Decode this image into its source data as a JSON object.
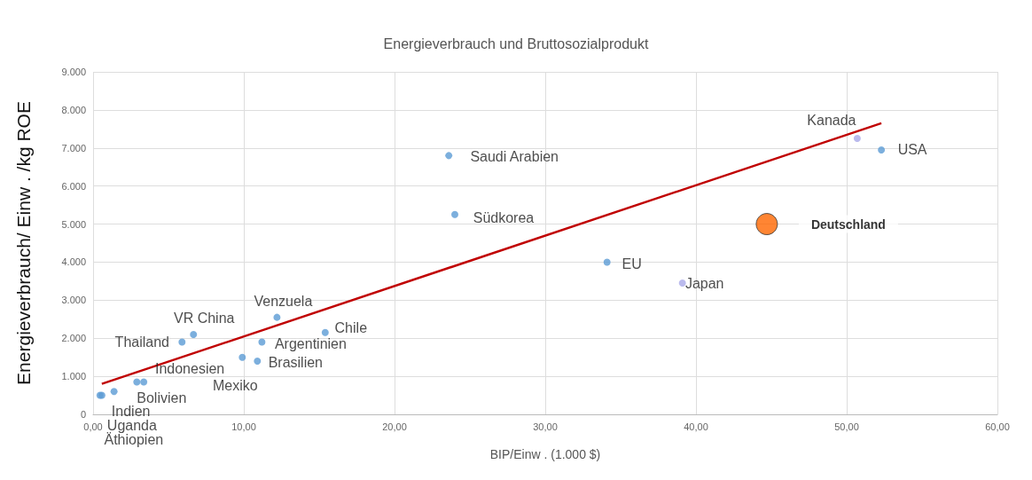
{
  "chart_data": {
    "type": "scatter",
    "title": "Energieverbrauch und Bruttosozialprodukt",
    "xlabel": "BIP/Einw . (1.000 $)",
    "ylabel": "Energieverbrauch/ Einw . /kg ROE",
    "xlim": [
      0,
      60
    ],
    "xticks": [
      {
        "value": 0,
        "label": "0,00"
      },
      {
        "value": 10,
        "label": "10,00"
      },
      {
        "value": 20,
        "label": "20,00"
      },
      {
        "value": 30,
        "label": "30,00"
      },
      {
        "value": 40,
        "label": "40,00"
      },
      {
        "value": 50,
        "label": "50,00"
      },
      {
        "value": 60,
        "label": "60,00"
      }
    ],
    "ylim": [
      0,
      9000
    ],
    "yticks": [
      0,
      {
        "value": 1000,
        "label": "1.000"
      },
      {
        "value": 2000,
        "label": "2.000"
      },
      {
        "value": 3000,
        "label": "3.000"
      },
      {
        "value": 4000,
        "label": "4.000"
      },
      {
        "value": 5000,
        "label": "5.000"
      },
      {
        "value": 6000,
        "label": "6.000"
      },
      {
        "value": 7000,
        "label": "7.000"
      },
      {
        "value": 8000,
        "label": "8.000"
      },
      {
        "value": 9000,
        "label": "9.000"
      }
    ],
    "grid": true,
    "legend": false,
    "marker": "circle",
    "series": [
      {
        "x": [
          0.46,
          0.58,
          1.39,
          2.9,
          3.36,
          5.9,
          6.66,
          9.9,
          10.9,
          11.2,
          12.2,
          15.4,
          23.6,
          24.0,
          34.1,
          39.1,
          50.7,
          52.3
        ],
        "values": [
          500,
          500,
          600,
          850,
          850,
          1900,
          2100,
          1500,
          1400,
          1900,
          2550,
          2150,
          6800,
          5250,
          4000,
          3450,
          7250,
          6950
        ],
        "colors": [
          "#5b9bd5",
          "#5b9bd5",
          "#5b9bd5",
          "#5b9bd5",
          "#5b9bd5",
          "#5b9bd5",
          "#5b9bd5",
          "#5b9bd5",
          "#5b9bd5",
          "#5b9bd5",
          "#5b9bd5",
          "#5b9bd5",
          "#5b9bd5",
          "#5b9bd5",
          "#5b9bd5",
          "#a9a9e8",
          "#a9a9e8",
          "#5b9bd5"
        ]
      },
      {
        "name": "Deutschland",
        "color": "#ff6600",
        "x": [
          44.7
        ],
        "values": [
          5000
        ]
      },
      {
        "type": "line",
        "color": "#c00000",
        "x": [
          0.58,
          52.3
        ],
        "values": [
          800,
          7650
        ],
        "marker": "none"
      }
    ],
    "annotations": [
      {
        "text": "Äthiopien",
        "x": 0.46,
        "y": 500
      },
      {
        "text": "Uganda",
        "x": 0.58,
        "y": 500
      },
      {
        "text": "Indien",
        "x": 1.39,
        "y": 600
      },
      {
        "text": "Bolivien",
        "x": 2.9,
        "y": 850
      },
      {
        "text": "Indonesien",
        "x": 3.36,
        "y": 850
      },
      {
        "text": "Thailand",
        "x": 5.9,
        "y": 1900
      },
      {
        "text": "VR China",
        "x": 6.66,
        "y": 2100
      },
      {
        "text": "Mexiko",
        "x": 9.9,
        "y": 1500
      },
      {
        "text": "Brasilien",
        "x": 10.9,
        "y": 1400
      },
      {
        "text": "Argentinien",
        "x": 11.2,
        "y": 1900
      },
      {
        "text": "Venzuela",
        "x": 12.2,
        "y": 2550
      },
      {
        "text": "Chile",
        "x": 15.4,
        "y": 2150
      },
      {
        "text": "Saudi Arabien",
        "x": 23.6,
        "y": 6800
      },
      {
        "text": "Südkorea",
        "x": 24.0,
        "y": 5250
      },
      {
        "text": "EU",
        "x": 34.1,
        "y": 4000
      },
      {
        "text": "Japan",
        "x": 39.1,
        "y": 3450
      },
      {
        "text": "Kanada",
        "x": 50.7,
        "y": 7250
      },
      {
        "text": "USA",
        "x": 52.3,
        "y": 6950
      }
    ]
  }
}
